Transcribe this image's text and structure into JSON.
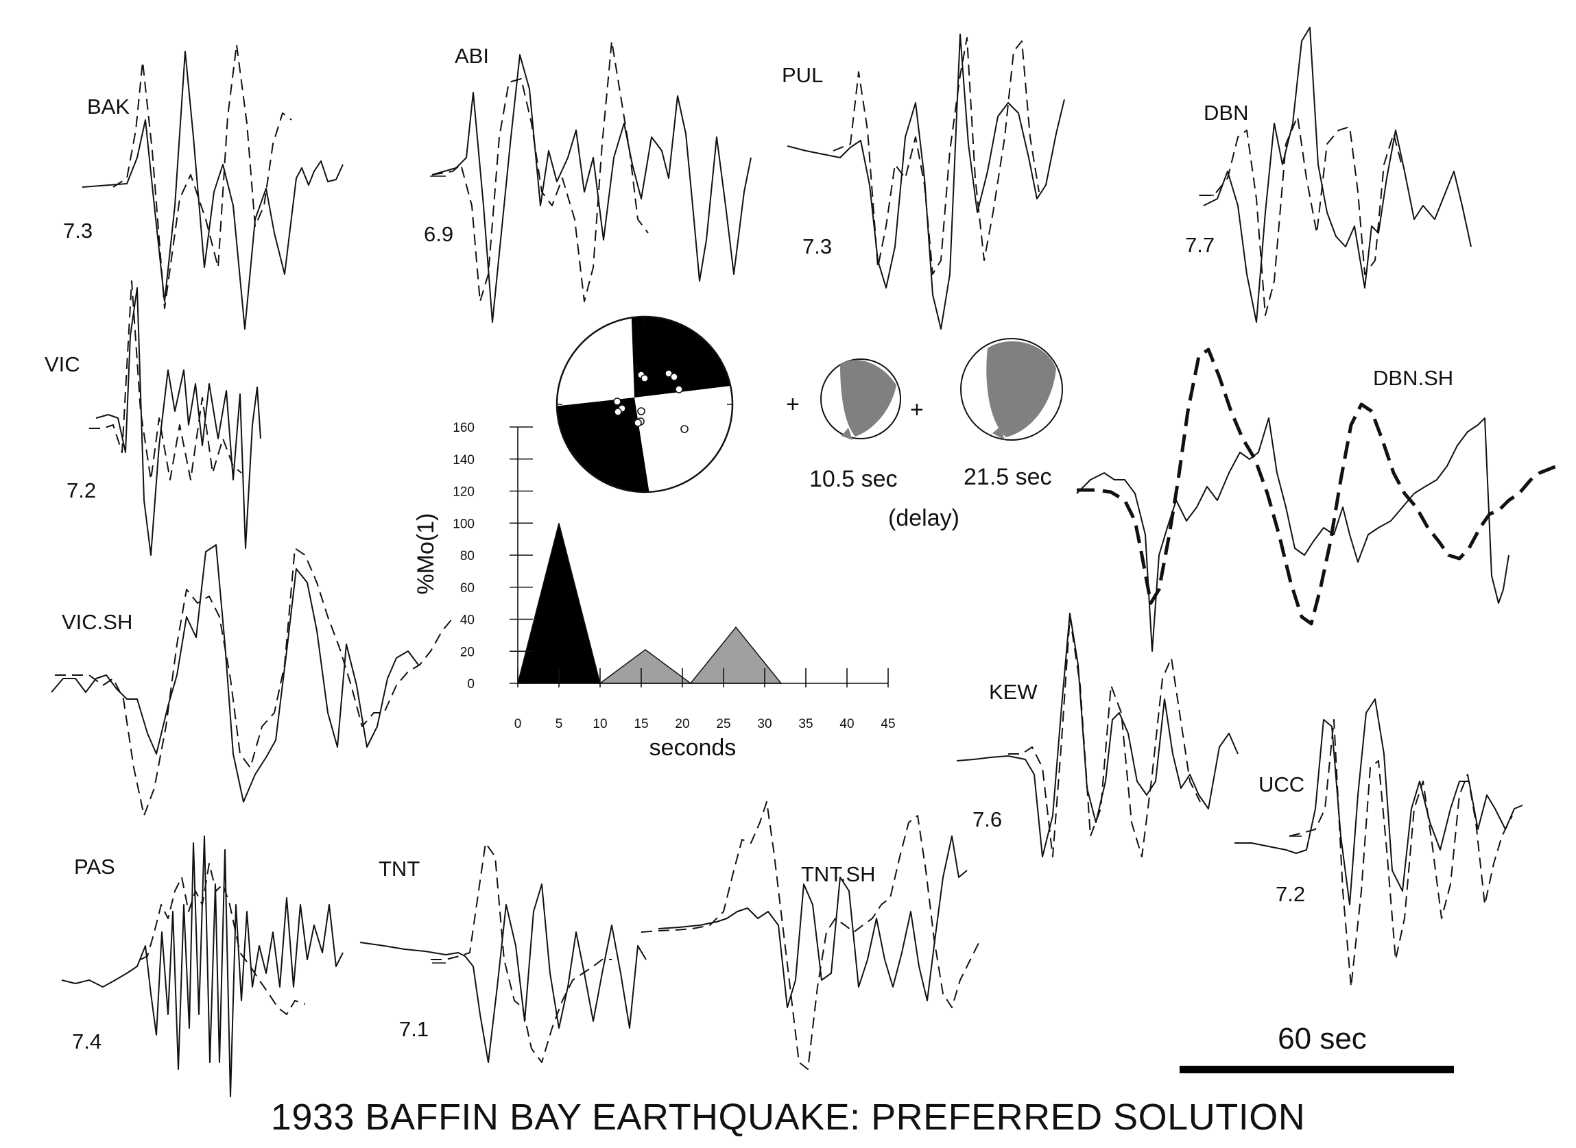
{
  "figure": {
    "title": "1933 BAFFIN BAY EARTHQUAKE: PREFERRED SOLUTION",
    "scale_bar_label": "60 sec"
  },
  "stations": [
    {
      "name": "BAK",
      "mag": "7.3"
    },
    {
      "name": "ABI",
      "mag": "6.9"
    },
    {
      "name": "PUL",
      "mag": "7.3"
    },
    {
      "name": "DBN",
      "mag": "7.7"
    },
    {
      "name": "VIC",
      "mag": "7.2"
    },
    {
      "name": "VIC.SH",
      "mag": ""
    },
    {
      "name": "DBN.SH",
      "mag": ""
    },
    {
      "name": "KEW",
      "mag": "7.6"
    },
    {
      "name": "UCC",
      "mag": "7.2"
    },
    {
      "name": "PAS",
      "mag": "7.4"
    },
    {
      "name": "TNT",
      "mag": "7.1"
    },
    {
      "name": "TNT.SH",
      "mag": ""
    }
  ],
  "subevents": {
    "plus": "+",
    "sub1_delay": "10.5 sec",
    "sub2_delay": "21.5 sec",
    "delay_label": "(delay)"
  },
  "mechanism": {
    "mode": "quadrant",
    "fill": "#000000"
  },
  "chart_data": {
    "type": "area",
    "title": "",
    "xlabel": "seconds",
    "ylabel": "%Mo(1)",
    "xlim": [
      0,
      45
    ],
    "ylim": [
      0,
      160
    ],
    "x_ticks": [
      "0",
      "5",
      "10",
      "15",
      "20",
      "25",
      "30",
      "35",
      "40",
      "45"
    ],
    "y_ticks": [
      "0",
      "20",
      "40",
      "60",
      "80",
      "100",
      "120",
      "140",
      "160"
    ],
    "series": [
      {
        "x": [
          0,
          5,
          10
        ],
        "y": [
          0,
          100,
          0
        ],
        "color": "#000000"
      },
      {
        "x": [
          10,
          15.5,
          21
        ],
        "y": [
          0,
          21,
          0
        ],
        "color": "#a0a0a0"
      },
      {
        "x": [
          21,
          26.5,
          32
        ],
        "y": [
          0,
          35,
          0
        ],
        "color": "#a0a0a0"
      }
    ]
  }
}
